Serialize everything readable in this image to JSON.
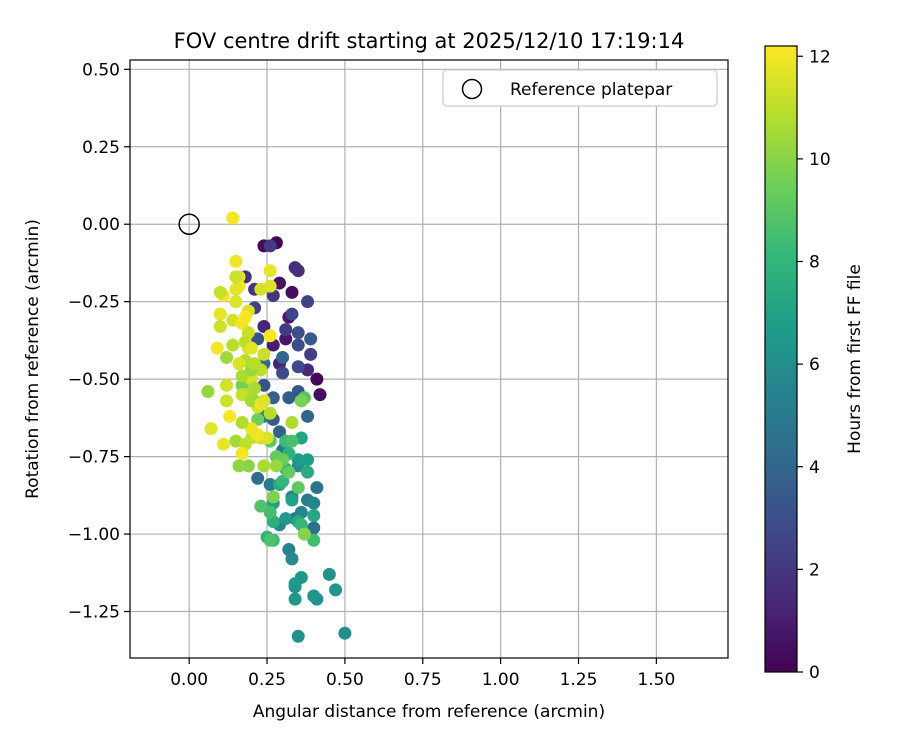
{
  "chart_data": {
    "type": "scatter",
    "title": "FOV centre drift starting at 2025/12/10 17:19:14",
    "xlabel": "Angular distance from reference (arcmin)",
    "ylabel": "Rotation from reference (arcmin)",
    "xlim": [
      -0.19,
      1.73
    ],
    "ylim": [
      -1.4,
      0.53
    ],
    "xticks": [
      "0.00",
      "0.25",
      "0.50",
      "0.75",
      "1.00",
      "1.25",
      "1.50"
    ],
    "xtick_values": [
      0,
      0.25,
      0.5,
      0.75,
      1.0,
      1.25,
      1.5
    ],
    "yticks": [
      "0.50",
      "0.25",
      "0.00",
      "−0.25",
      "−0.50",
      "−0.75",
      "−1.00",
      "−1.25"
    ],
    "ytick_values": [
      0.5,
      0.25,
      0,
      -0.25,
      -0.5,
      -0.75,
      -1.0,
      -1.25
    ],
    "grid": true,
    "legend": {
      "label": "Reference platepar",
      "position": "top-right"
    },
    "reference_point": {
      "x": 0.0,
      "y": 0.0
    },
    "colorbar": {
      "label": "Hours from first FF file",
      "range": [
        0,
        12.2
      ],
      "ticks": [
        "0",
        "2",
        "4",
        "6",
        "8",
        "10",
        "12"
      ],
      "tick_values": [
        0,
        2,
        4,
        6,
        8,
        10,
        12
      ],
      "colormap": "viridis",
      "stops": [
        "#440154",
        "#482878",
        "#3e4989",
        "#31688e",
        "#26828e",
        "#1f9e89",
        "#35b779",
        "#6ece58",
        "#b5de2b",
        "#fde725"
      ]
    },
    "points": [
      [
        0.28,
        -0.06,
        0.1
      ],
      [
        0.24,
        -0.07,
        0.3
      ],
      [
        0.33,
        -0.22,
        0.4
      ],
      [
        0.29,
        -0.19,
        0.6
      ],
      [
        0.41,
        -0.5,
        0.2
      ],
      [
        0.42,
        -0.55,
        0.5
      ],
      [
        0.31,
        -0.37,
        0.8
      ],
      [
        0.32,
        -0.3,
        0.9
      ],
      [
        0.27,
        -0.39,
        1.0
      ],
      [
        0.29,
        -0.45,
        1.2
      ],
      [
        0.24,
        -0.33,
        1.3
      ],
      [
        0.38,
        -0.47,
        1.4
      ],
      [
        0.34,
        -0.14,
        1.6
      ],
      [
        0.35,
        -0.15,
        1.7
      ],
      [
        0.18,
        -0.17,
        1.8
      ],
      [
        0.21,
        -0.21,
        1.9
      ],
      [
        0.27,
        -0.23,
        2.0
      ],
      [
        0.26,
        -0.07,
        2.1
      ],
      [
        0.31,
        -0.34,
        2.2
      ],
      [
        0.39,
        -0.42,
        2.3
      ],
      [
        0.21,
        -0.27,
        2.4
      ],
      [
        0.38,
        -0.25,
        2.5
      ],
      [
        0.33,
        -0.29,
        2.6
      ],
      [
        0.35,
        -0.46,
        2.7
      ],
      [
        0.3,
        -0.48,
        2.8
      ],
      [
        0.35,
        -0.39,
        2.9
      ],
      [
        0.35,
        -0.35,
        3.0
      ],
      [
        0.22,
        -0.37,
        3.1
      ],
      [
        0.24,
        -0.52,
        3.2
      ],
      [
        0.35,
        -0.54,
        3.3
      ],
      [
        0.39,
        -0.37,
        3.4
      ],
      [
        0.27,
        -0.63,
        3.5
      ],
      [
        0.32,
        -0.56,
        3.6
      ],
      [
        0.27,
        -0.56,
        3.7
      ],
      [
        0.29,
        -0.67,
        3.8
      ],
      [
        0.38,
        -0.62,
        3.9
      ],
      [
        0.3,
        -0.43,
        4.0
      ],
      [
        0.24,
        -0.45,
        4.1
      ],
      [
        0.22,
        -0.82,
        4.3
      ],
      [
        0.4,
        -0.98,
        4.4
      ],
      [
        0.31,
        -0.71,
        4.6
      ],
      [
        0.41,
        -0.85,
        4.7
      ],
      [
        0.34,
        -0.95,
        4.8
      ],
      [
        0.3,
        -0.73,
        4.9
      ],
      [
        0.24,
        -0.62,
        5.0
      ],
      [
        0.26,
        -0.84,
        5.1
      ],
      [
        0.38,
        -0.89,
        5.2
      ],
      [
        0.33,
        -0.88,
        5.3
      ],
      [
        0.32,
        -1.05,
        5.4
      ],
      [
        0.36,
        -0.93,
        5.5
      ],
      [
        0.4,
        -0.9,
        5.6
      ],
      [
        0.29,
        -0.97,
        5.7
      ],
      [
        0.33,
        -1.08,
        5.8
      ],
      [
        0.37,
        -1.0,
        5.9
      ],
      [
        0.35,
        -0.78,
        6.0
      ],
      [
        0.5,
        -1.32,
        6.0
      ],
      [
        0.41,
        -1.21,
        6.1
      ],
      [
        0.35,
        -1.33,
        6.1
      ],
      [
        0.34,
        -1.17,
        6.2
      ],
      [
        0.45,
        -1.13,
        6.2
      ],
      [
        0.4,
        -1.2,
        6.3
      ],
      [
        0.47,
        -1.18,
        6.3
      ],
      [
        0.36,
        -1.14,
        6.4
      ],
      [
        0.34,
        -1.21,
        6.4
      ],
      [
        0.34,
        -1.16,
        6.5
      ],
      [
        0.31,
        -0.95,
        6.6
      ],
      [
        0.35,
        -0.76,
        6.7
      ],
      [
        0.38,
        -0.76,
        6.8
      ],
      [
        0.33,
        -0.89,
        6.9
      ],
      [
        0.27,
        -0.9,
        7.0
      ],
      [
        0.36,
        -0.69,
        7.1
      ],
      [
        0.4,
        -0.94,
        7.2
      ],
      [
        0.35,
        -0.96,
        7.3
      ],
      [
        0.29,
        -0.84,
        7.4
      ],
      [
        0.38,
        -0.8,
        7.5
      ],
      [
        0.31,
        -0.79,
        7.6
      ],
      [
        0.27,
        -0.96,
        7.7
      ],
      [
        0.32,
        -0.74,
        7.8
      ],
      [
        0.25,
        -1.01,
        7.9
      ],
      [
        0.3,
        -0.83,
        8.0
      ],
      [
        0.36,
        -0.97,
        8.1
      ],
      [
        0.27,
        -1.02,
        8.2
      ],
      [
        0.31,
        -0.7,
        8.3
      ],
      [
        0.4,
        -1.02,
        8.4
      ],
      [
        0.26,
        -0.93,
        8.5
      ],
      [
        0.33,
        -0.7,
        8.6
      ],
      [
        0.26,
        -1.02,
        8.7
      ],
      [
        0.23,
        -0.91,
        8.8
      ],
      [
        0.37,
        -0.56,
        8.9
      ],
      [
        0.26,
        -0.7,
        9.0
      ],
      [
        0.35,
        -0.85,
        9.1
      ],
      [
        0.28,
        -0.75,
        9.2
      ],
      [
        0.32,
        -0.8,
        9.3
      ],
      [
        0.3,
        -0.76,
        9.4
      ],
      [
        0.22,
        -0.63,
        9.5
      ],
      [
        0.17,
        -0.52,
        9.6
      ],
      [
        0.36,
        -0.57,
        9.7
      ],
      [
        0.27,
        -0.88,
        9.8
      ],
      [
        0.37,
        -1.0,
        9.9
      ],
      [
        0.19,
        -0.78,
        10.0
      ],
      [
        0.16,
        -0.78,
        10.1
      ],
      [
        0.21,
        -0.57,
        10.2
      ],
      [
        0.28,
        -0.78,
        10.3
      ],
      [
        0.12,
        -0.43,
        10.4
      ],
      [
        0.15,
        -0.7,
        10.5
      ],
      [
        0.24,
        -0.78,
        10.6
      ],
      [
        0.33,
        -0.64,
        10.7
      ],
      [
        0.18,
        -0.55,
        10.8
      ],
      [
        0.26,
        -0.61,
        10.9
      ],
      [
        0.18,
        -0.71,
        11.0
      ],
      [
        0.2,
        -0.69,
        11.1
      ],
      [
        0.23,
        -0.69,
        11.2
      ],
      [
        0.12,
        -0.57,
        11.3
      ],
      [
        0.22,
        -0.59,
        11.4
      ],
      [
        0.2,
        -0.5,
        11.5
      ],
      [
        0.19,
        -0.4,
        11.6
      ],
      [
        0.07,
        -0.66,
        11.7
      ],
      [
        0.11,
        -0.71,
        11.8
      ],
      [
        0.2,
        -0.66,
        11.9
      ],
      [
        0.17,
        -0.74,
        12.0
      ],
      [
        0.14,
        0.02,
        12.1
      ],
      [
        0.15,
        -0.12,
        11.9
      ],
      [
        0.16,
        -0.17,
        11.8
      ],
      [
        0.16,
        -0.2,
        12.0
      ],
      [
        0.15,
        -0.21,
        11.7
      ],
      [
        0.11,
        -0.23,
        12.1
      ],
      [
        0.15,
        -0.25,
        11.6
      ],
      [
        0.19,
        -0.28,
        11.5
      ],
      [
        0.1,
        -0.29,
        11.8
      ],
      [
        0.14,
        -0.31,
        11.4
      ],
      [
        0.17,
        -0.32,
        12.0
      ],
      [
        0.1,
        -0.33,
        11.3
      ],
      [
        0.19,
        -0.35,
        11.2
      ],
      [
        0.26,
        -0.36,
        12.1
      ],
      [
        0.18,
        -0.38,
        11.0
      ],
      [
        0.14,
        -0.39,
        10.9
      ],
      [
        0.2,
        -0.4,
        11.7
      ],
      [
        0.24,
        -0.42,
        11.2
      ],
      [
        0.18,
        -0.44,
        10.8
      ],
      [
        0.16,
        -0.45,
        11.5
      ],
      [
        0.23,
        -0.47,
        11.0
      ],
      [
        0.17,
        -0.49,
        10.7
      ],
      [
        0.12,
        -0.52,
        11.4
      ],
      [
        0.21,
        -0.53,
        10.6
      ],
      [
        0.17,
        -0.55,
        11.1
      ],
      [
        0.2,
        -0.57,
        10.5
      ],
      [
        0.23,
        -0.58,
        11.9
      ],
      [
        0.13,
        -0.62,
        12.0
      ],
      [
        0.17,
        -0.64,
        10.8
      ],
      [
        0.26,
        -0.2,
        11.6
      ],
      [
        0.15,
        -0.17,
        11.3
      ],
      [
        0.1,
        -0.22,
        11.1
      ],
      [
        0.23,
        -0.21,
        11.4
      ],
      [
        0.2,
        -0.47,
        10.3
      ],
      [
        0.18,
        -0.3,
        12.1
      ],
      [
        0.09,
        -0.4,
        12.0
      ],
      [
        0.26,
        -0.15,
        11.8
      ],
      [
        0.06,
        -0.54,
        10.2
      ],
      [
        0.21,
        -0.45,
        10.9
      ],
      [
        0.25,
        -0.69,
        11.5
      ],
      [
        0.24,
        -0.57,
        11.6
      ],
      [
        0.22,
        -0.68,
        11.9
      ]
    ]
  }
}
